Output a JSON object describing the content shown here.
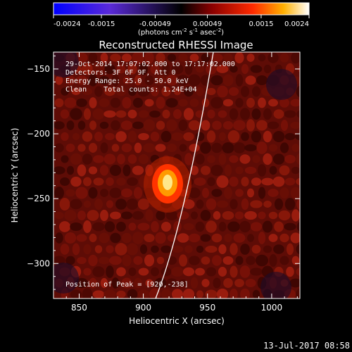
{
  "chart_data": {
    "type": "heatmap",
    "title": "Reconstructed RHESSI Image",
    "xlabel": "Heliocentric X (arcsec)",
    "ylabel": "Heliocentric Y (arcsec)",
    "x_ticks": [
      850,
      900,
      950,
      1000
    ],
    "y_ticks": [
      -150,
      -200,
      -250,
      -300
    ],
    "xlim": [
      830,
      1022
    ],
    "ylim": [
      -327,
      -137
    ],
    "colorbar": {
      "ticks": [
        "-0.0024",
        "-0.0015",
        "-0.00049",
        "0.00049",
        "0.0015",
        "0.0024"
      ],
      "unit_parts": [
        "(photons cm",
        "-2",
        " s",
        "-1",
        " asec",
        "-2",
        ")"
      ],
      "range": [
        -0.0024,
        0.0024
      ]
    },
    "annotations": {
      "time": "29-Oct-2014 17:07:02.000 to 17:17:02.000",
      "detectors": "Detectors: 3F 6F 9F, Att 0",
      "energy": "Energy Range: 25.0 - 50.0 keV",
      "clean": "Clean    Total counts: 1.24E+04",
      "peak": "Position of Peak = [920,-238]"
    },
    "source": {
      "x": 920,
      "y": -238,
      "peak_value": 0.0024
    },
    "footer_date": "13-Jul-2017 08:58"
  }
}
